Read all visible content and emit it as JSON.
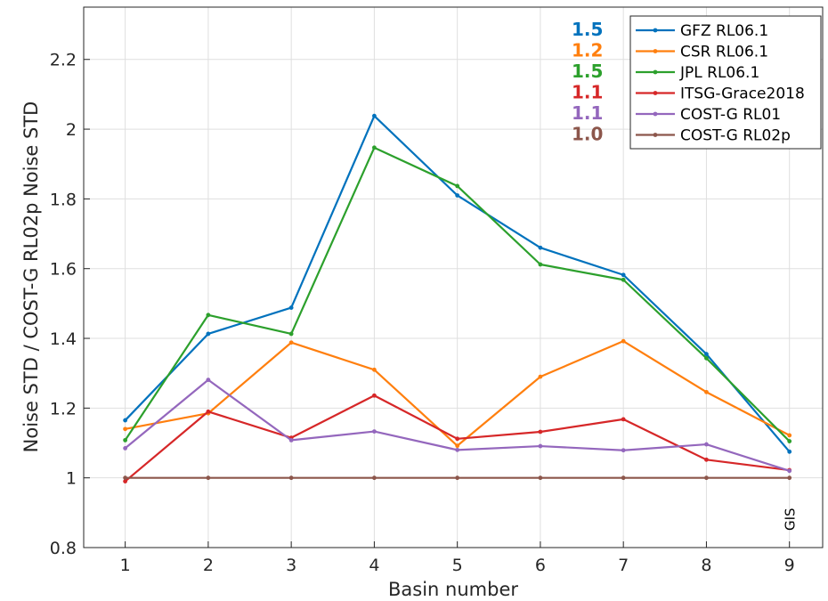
{
  "chart_data": {
    "type": "line",
    "xlabel": "Basin number",
    "ylabel": "Noise STD / COST-G RL02p Noise STD",
    "xlim": [
      0.5,
      9.4
    ],
    "ylim": [
      0.8,
      2.35
    ],
    "x": [
      1,
      2,
      3,
      4,
      5,
      6,
      7,
      8,
      9
    ],
    "xticks": [
      "1",
      "2",
      "3",
      "4",
      "5",
      "6",
      "7",
      "8",
      "9"
    ],
    "yticks": [
      {
        "value": 0.8,
        "label": "0.8"
      },
      {
        "value": 1.0,
        "label": "1"
      },
      {
        "value": 1.2,
        "label": "1.2"
      },
      {
        "value": 1.4,
        "label": "1.4"
      },
      {
        "value": 1.6,
        "label": "1.6"
      },
      {
        "value": 1.8,
        "label": "1.8"
      },
      {
        "value": 2.0,
        "label": "2"
      },
      {
        "value": 2.2,
        "label": "2.2"
      }
    ],
    "grid": true,
    "legend_position": "top-right",
    "annotation": {
      "text": "GIS",
      "x": 9
    },
    "series": [
      {
        "name": "GFZ RL06.1",
        "color": "#0072BD",
        "mean": "1.5",
        "values": [
          1.165,
          1.413,
          1.488,
          2.038,
          1.81,
          1.66,
          1.582,
          1.355,
          1.075
        ]
      },
      {
        "name": "CSR RL06.1",
        "color": "#FF7F0E",
        "mean": "1.2",
        "values": [
          1.14,
          1.185,
          1.388,
          1.31,
          1.092,
          1.29,
          1.392,
          1.246,
          1.122
        ]
      },
      {
        "name": "JPL RL06.1",
        "color": "#2CA02C",
        "mean": "1.5",
        "values": [
          1.108,
          1.467,
          1.413,
          1.947,
          1.837,
          1.612,
          1.568,
          1.343,
          1.105
        ]
      },
      {
        "name": "ITSG-Grace2018",
        "color": "#D62728",
        "mean": "1.1",
        "values": [
          0.99,
          1.19,
          1.115,
          1.236,
          1.112,
          1.132,
          1.168,
          1.052,
          1.022
        ]
      },
      {
        "name": "COST-G RL01",
        "color": "#9467BD",
        "mean": "1.1",
        "values": [
          1.085,
          1.281,
          1.108,
          1.133,
          1.08,
          1.091,
          1.079,
          1.096,
          1.02
        ]
      },
      {
        "name": "COST-G RL02p",
        "color": "#8C564B",
        "mean": "1.0",
        "values": [
          1.0,
          1.0,
          1.0,
          1.0,
          1.0,
          1.0,
          1.0,
          1.0,
          1.0
        ]
      }
    ]
  }
}
